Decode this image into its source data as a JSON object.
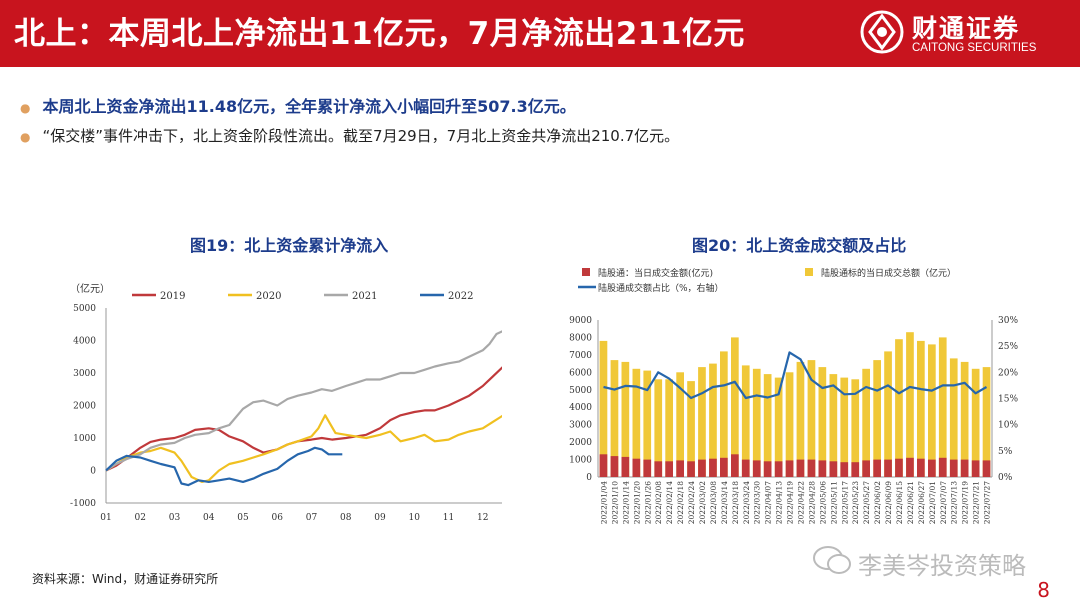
{
  "header": {
    "title": "北上：本周北上净流出11亿元，7月净流出211亿元"
  },
  "logo": {
    "name_cn": "财通证券",
    "name_en": "CAITONG SECURITIES"
  },
  "bullets": [
    "本周北上资金净流出11.48亿元，全年累计净流入小幅回升至507.3亿元。",
    "“保交楼”事件冲击下，北上资金阶段性流出。截至7月29日，7月北上资金共净流出210.7亿元。"
  ],
  "source": "资料来源：Wind，财通证券研究所",
  "watermark": "李美岑投资策略",
  "page_number": "8",
  "colors": {
    "brand_red": "#c8141e",
    "title_blue": "#1d3c8c",
    "s2019": "#c0393b",
    "s2020": "#f0c020",
    "s2021": "#a8a8a8",
    "s2022": "#2666ac",
    "bar_red": "#c0393b",
    "bar_yellow": "#f0c838",
    "ratio_line": "#2666ac"
  },
  "chart_data": [
    {
      "type": "line",
      "title": "图19：北上资金累计净流入",
      "ylabel": "（亿元）",
      "ylim": [
        -1000,
        5000
      ],
      "yticks": [
        -1000,
        0,
        1000,
        2000,
        3000,
        4000,
        5000
      ],
      "xlim": [
        1,
        13
      ],
      "xticks": [
        "01",
        "02",
        "03",
        "04",
        "05",
        "06",
        "07",
        "08",
        "09",
        "10",
        "11",
        "12"
      ],
      "legend": "top",
      "series": [
        {
          "name": "2019",
          "color": "#c0393b",
          "x": [
            1,
            1.3,
            1.6,
            2,
            2.3,
            2.6,
            3,
            3.3,
            3.6,
            4,
            4.3,
            4.6,
            5,
            5.3,
            5.6,
            6,
            6.3,
            6.6,
            7,
            7.3,
            7.6,
            8,
            8.3,
            8.6,
            9,
            9.3,
            9.6,
            10,
            10.3,
            10.6,
            11,
            11.3,
            11.6,
            12,
            12.3,
            12.6,
            12.9
          ],
          "y": [
            0,
            150,
            380,
            700,
            880,
            950,
            1000,
            1100,
            1250,
            1300,
            1250,
            1050,
            900,
            700,
            550,
            650,
            800,
            900,
            950,
            1000,
            950,
            1000,
            1050,
            1100,
            1300,
            1550,
            1700,
            1800,
            1850,
            1850,
            2000,
            2150,
            2300,
            2600,
            2900,
            3200,
            3400
          ]
        },
        {
          "name": "2020",
          "color": "#f0c020",
          "x": [
            1,
            1.3,
            1.6,
            2,
            2.3,
            2.6,
            3,
            3.2,
            3.5,
            3.8,
            4,
            4.3,
            4.6,
            5,
            5.3,
            5.6,
            6,
            6.3,
            6.6,
            7,
            7.2,
            7.4,
            7.7,
            8,
            8.3,
            8.6,
            9,
            9.3,
            9.6,
            10,
            10.3,
            10.6,
            11,
            11.3,
            11.6,
            12,
            12.3,
            12.6,
            12.9
          ],
          "y": [
            0,
            200,
            400,
            550,
            600,
            700,
            550,
            300,
            -200,
            -350,
            -300,
            0,
            200,
            300,
            400,
            500,
            650,
            800,
            900,
            1050,
            1300,
            1700,
            1150,
            1100,
            1050,
            1000,
            1100,
            1200,
            900,
            1000,
            1100,
            900,
            950,
            1100,
            1200,
            1300,
            1500,
            1700,
            1900
          ]
        },
        {
          "name": "2021",
          "color": "#a8a8a8",
          "x": [
            1,
            1.3,
            1.6,
            2,
            2.3,
            2.6,
            3,
            3.3,
            3.6,
            4,
            4.3,
            4.6,
            5,
            5.3,
            5.6,
            6,
            6.3,
            6.6,
            7,
            7.3,
            7.6,
            8,
            8.3,
            8.6,
            9,
            9.3,
            9.6,
            10,
            10.3,
            10.6,
            11,
            11.3,
            11.6,
            12,
            12.2,
            12.4,
            12.6,
            12.9
          ],
          "y": [
            0,
            200,
            350,
            500,
            700,
            800,
            850,
            1000,
            1100,
            1150,
            1300,
            1400,
            1900,
            2100,
            2150,
            2000,
            2200,
            2300,
            2400,
            2500,
            2450,
            2600,
            2700,
            2800,
            2800,
            2900,
            3000,
            3000,
            3100,
            3200,
            3300,
            3350,
            3500,
            3700,
            3900,
            4200,
            4300,
            4300
          ]
        },
        {
          "name": "2022",
          "color": "#2666ac",
          "x": [
            1,
            1.3,
            1.6,
            2,
            2.3,
            2.6,
            3,
            3.2,
            3.4,
            3.7,
            4,
            4.3,
            4.6,
            5,
            5.3,
            5.6,
            6,
            6.3,
            6.6,
            6.9,
            7.1,
            7.3,
            7.5,
            7.7,
            7.9
          ],
          "y": [
            0,
            300,
            450,
            400,
            300,
            200,
            100,
            -400,
            -450,
            -300,
            -350,
            -300,
            -250,
            -350,
            -250,
            -100,
            50,
            300,
            500,
            600,
            700,
            650,
            500,
            500,
            500
          ]
        }
      ]
    },
    {
      "type": "bar",
      "title": "图20：北上资金成交额及占比",
      "ylim": [
        0,
        9000
      ],
      "yticks": [
        0,
        1000,
        2000,
        3000,
        4000,
        5000,
        6000,
        7000,
        8000,
        9000
      ],
      "y2lim": [
        0,
        0.3
      ],
      "y2ticks": [
        "0%",
        "5%",
        "10%",
        "15%",
        "20%",
        "25%",
        "30%"
      ],
      "legend": "top",
      "x": [
        "2022/01/04",
        "2022/01/10",
        "2022/01/14",
        "2022/01/20",
        "2022/01/26",
        "2022/02/08",
        "2022/02/14",
        "2022/02/18",
        "2022/02/24",
        "2022/03/02",
        "2022/03/08",
        "2022/03/14",
        "2022/03/18",
        "2022/03/24",
        "2022/03/30",
        "2022/04/07",
        "2022/04/13",
        "2022/04/19",
        "2022/04/22",
        "2022/04/28",
        "2022/05/06",
        "2022/05/11",
        "2022/05/17",
        "2022/05/23",
        "2022/05/27",
        "2022/06/02",
        "2022/06/09",
        "2022/06/15",
        "2022/06/21",
        "2022/06/27",
        "2022/07/01",
        "2022/07/07",
        "2022/07/13",
        "2022/07/19",
        "2022/07/21",
        "2022/07/27"
      ],
      "series": [
        {
          "name": "陆股通：当日成交金额(亿元)",
          "kind": "bar",
          "color": "#c0393b",
          "values": [
            1300,
            1200,
            1150,
            1050,
            1000,
            900,
            900,
            950,
            900,
            1000,
            1050,
            1100,
            1300,
            1000,
            950,
            900,
            900,
            950,
            1000,
            1000,
            950,
            900,
            850,
            850,
            950,
            1000,
            1000,
            1050,
            1100,
            1050,
            1000,
            1100,
            1000,
            1000,
            950,
            950
          ]
        },
        {
          "name": "陆股通标的当日成交总额（亿元）",
          "kind": "bar",
          "color": "#f0c838",
          "values": [
            7800,
            6700,
            6600,
            6200,
            6100,
            5600,
            5600,
            6000,
            5500,
            6300,
            6500,
            7200,
            8000,
            6400,
            6200,
            5900,
            5700,
            6000,
            6600,
            6700,
            6300,
            5900,
            5700,
            5600,
            6200,
            6700,
            7200,
            7900,
            8300,
            7800,
            7600,
            8000,
            6800,
            6600,
            6200,
            6300
          ]
        },
        {
          "name": "陆股通成交额占比（%，右轴）",
          "kind": "line",
          "axis": "right",
          "color": "#2666ac",
          "values": [
            0.172,
            0.167,
            0.174,
            0.173,
            0.166,
            0.2,
            0.188,
            0.17,
            0.151,
            0.16,
            0.172,
            0.175,
            0.182,
            0.151,
            0.156,
            0.152,
            0.158,
            0.238,
            0.225,
            0.186,
            0.17,
            0.175,
            0.158,
            0.159,
            0.172,
            0.165,
            0.175,
            0.16,
            0.172,
            0.168,
            0.165,
            0.175,
            0.175,
            0.18,
            0.16,
            0.172
          ]
        }
      ]
    }
  ]
}
